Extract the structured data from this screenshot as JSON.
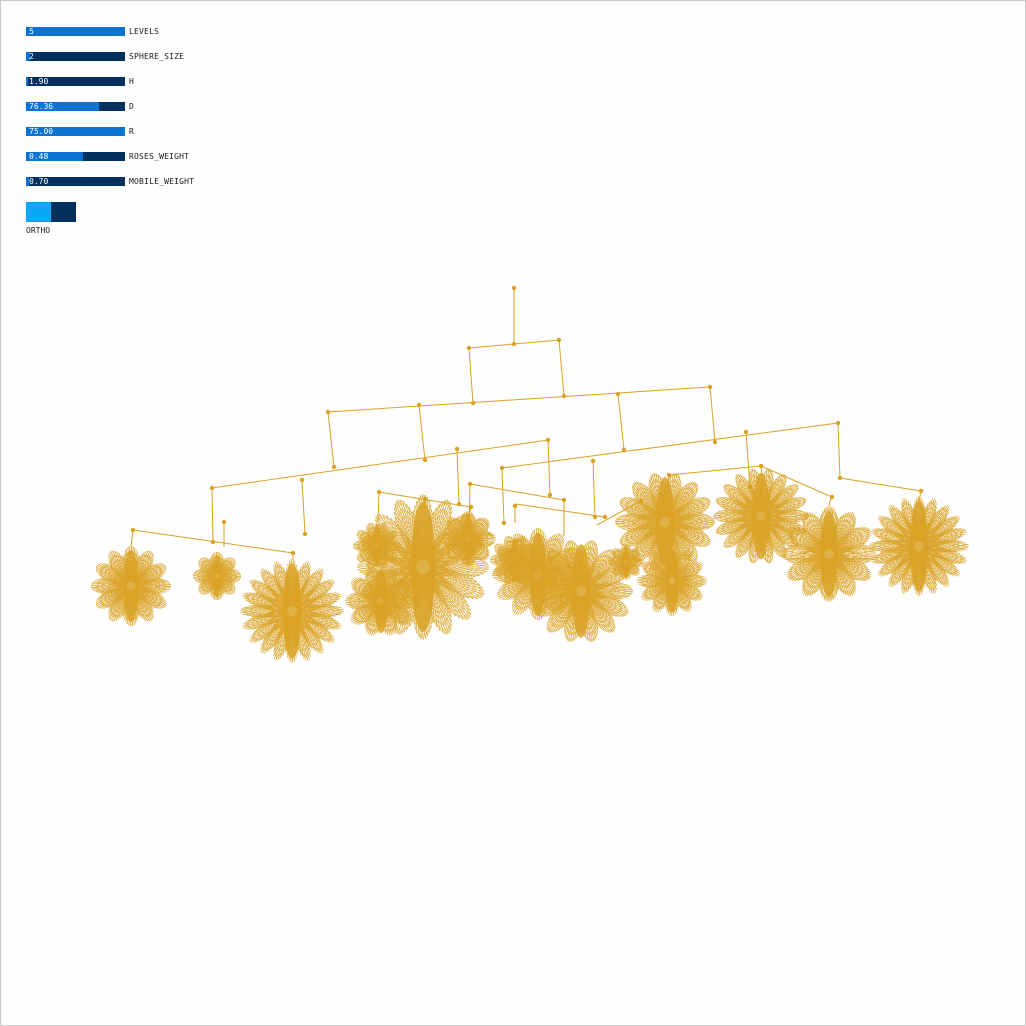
{
  "controls": {
    "sliders": [
      {
        "id": "levels",
        "label": "LEVELS",
        "value": "5",
        "fill": 1.0
      },
      {
        "id": "sphere-size",
        "label": "SPHERE_SIZE",
        "value": "2",
        "fill": 0.04
      },
      {
        "id": "h",
        "label": "H",
        "value": "1.90",
        "fill": 0.02
      },
      {
        "id": "d",
        "label": "D",
        "value": "76.36",
        "fill": 0.74
      },
      {
        "id": "r",
        "label": "R",
        "value": "75.00",
        "fill": 1.0
      },
      {
        "id": "roses-weight",
        "label": "ROSES_WEIGHT",
        "value": "0.48",
        "fill": 0.58
      },
      {
        "id": "mobile-weight",
        "label": "MOBILE_WEIGHT",
        "value": "0.70",
        "fill": 0.03
      }
    ],
    "toggle": {
      "label": "ORTHO",
      "on": true
    }
  },
  "colors": {
    "mobile": "#d9a225",
    "slider_fill": "#0b73d2",
    "slider_track": "#02305e",
    "toggle_on": "#09a8f6"
  }
}
